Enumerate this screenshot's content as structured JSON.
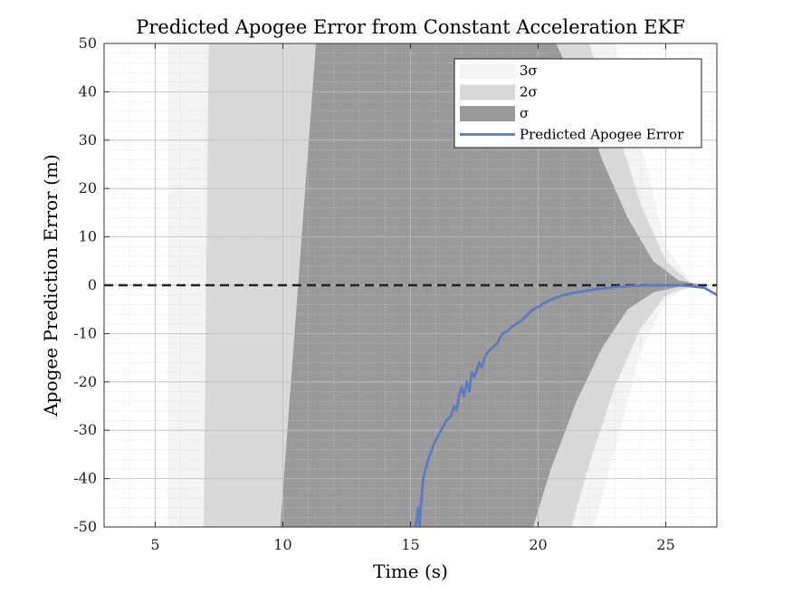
{
  "chart_data": {
    "type": "area",
    "title": "Predicted Apogee Error from Constant Acceleration EKF",
    "xlabel": "Time (s)",
    "ylabel": "Apogee Prediction Error (m)",
    "xlim": [
      3,
      27
    ],
    "ylim": [
      -50,
      50
    ],
    "xticks": [
      5,
      10,
      15,
      20,
      25
    ],
    "yticks": [
      50,
      40,
      30,
      20,
      10,
      0,
      -10,
      -20,
      -30,
      -40,
      -50
    ],
    "grid": "major and minor, dotted",
    "legend_position": "top-right",
    "reference_line": {
      "y": 0,
      "style": "dashed",
      "color": "#222222"
    },
    "bands": [
      {
        "name": "3σ",
        "color": "#f4f4f4",
        "upper": [
          [
            5.5,
            50
          ],
          [
            23,
            50
          ],
          [
            24,
            30
          ],
          [
            25,
            8
          ],
          [
            26,
            0.5
          ],
          [
            26.5,
            0
          ],
          [
            27,
            0
          ]
        ],
        "lower": [
          [
            5.5,
            -50
          ],
          [
            22.2,
            -50
          ],
          [
            23,
            -34
          ],
          [
            24,
            -14
          ],
          [
            25,
            -3
          ],
          [
            26,
            -0.3
          ],
          [
            26.5,
            0
          ],
          [
            27,
            0
          ]
        ]
      },
      {
        "name": "2σ",
        "color": "#d9d9d9",
        "upper": [
          [
            7.1,
            50
          ],
          [
            22,
            50
          ],
          [
            23,
            34
          ],
          [
            24,
            17
          ],
          [
            25,
            5
          ],
          [
            26,
            0.3
          ],
          [
            26.5,
            0
          ],
          [
            27,
            0
          ]
        ],
        "lower": [
          [
            6.9,
            -50
          ],
          [
            21.3,
            -50
          ],
          [
            22,
            -37
          ],
          [
            23,
            -21
          ],
          [
            24,
            -9
          ],
          [
            25,
            -2
          ],
          [
            26,
            -0.2
          ],
          [
            26.5,
            0
          ],
          [
            27,
            0
          ]
        ]
      },
      {
        "name": "σ",
        "color": "#9a9a9a",
        "upper": [
          [
            11.3,
            50
          ],
          [
            20.7,
            50
          ],
          [
            21.5,
            41
          ],
          [
            22.5,
            26
          ],
          [
            23.5,
            14
          ],
          [
            24.5,
            5
          ],
          [
            25.5,
            1
          ],
          [
            26.5,
            0
          ],
          [
            27,
            0
          ]
        ],
        "lower": [
          [
            9.9,
            -50
          ],
          [
            19.8,
            -50
          ],
          [
            20.5,
            -38
          ],
          [
            21.5,
            -24
          ],
          [
            22.5,
            -13
          ],
          [
            23.5,
            -5
          ],
          [
            24.5,
            -1.5
          ],
          [
            25.5,
            -0.3
          ],
          [
            26.5,
            0
          ],
          [
            27,
            0
          ]
        ]
      }
    ],
    "series": [
      {
        "name": "Predicted Apogee Error",
        "color": "#5e7bc2",
        "x": [
          15.2,
          15.3,
          15.35,
          15.4,
          15.5,
          15.6,
          15.7,
          15.9,
          16.0,
          16.2,
          16.4,
          16.6,
          16.7,
          16.8,
          16.9,
          17.0,
          17.1,
          17.2,
          17.3,
          17.4,
          17.5,
          17.7,
          17.8,
          17.9,
          18.0,
          18.2,
          18.4,
          18.6,
          18.8,
          19.0,
          19.3,
          19.6,
          19.8,
          20.0,
          20.3,
          20.6,
          21.0,
          21.5,
          22.0,
          22.5,
          23.0,
          23.5,
          24.0,
          24.5,
          25.0,
          25.5,
          26.0,
          26.5,
          27.0
        ],
        "y": [
          -50,
          -46,
          -50,
          -46,
          -40,
          -38,
          -36,
          -33,
          -32,
          -30,
          -28,
          -27,
          -25,
          -26,
          -23,
          -21,
          -23,
          -20,
          -22,
          -18,
          -19,
          -16,
          -17,
          -15,
          -14,
          -13,
          -12,
          -10,
          -9.5,
          -8.5,
          -7.5,
          -6,
          -5,
          -4.5,
          -3.5,
          -2.8,
          -2,
          -1.5,
          -1,
          -0.7,
          -0.4,
          -0.2,
          -0.1,
          -0.05,
          0,
          0,
          -0.2,
          -0.5,
          -2
        ]
      }
    ],
    "legend": [
      {
        "label": "3σ",
        "kind": "patch",
        "color": "#f4f4f4"
      },
      {
        "label": "2σ",
        "kind": "patch",
        "color": "#d9d9d9"
      },
      {
        "label": "σ",
        "kind": "patch",
        "color": "#9a9a9a"
      },
      {
        "label": "Predicted Apogee Error",
        "kind": "line",
        "color": "#5e7bc2"
      }
    ]
  }
}
